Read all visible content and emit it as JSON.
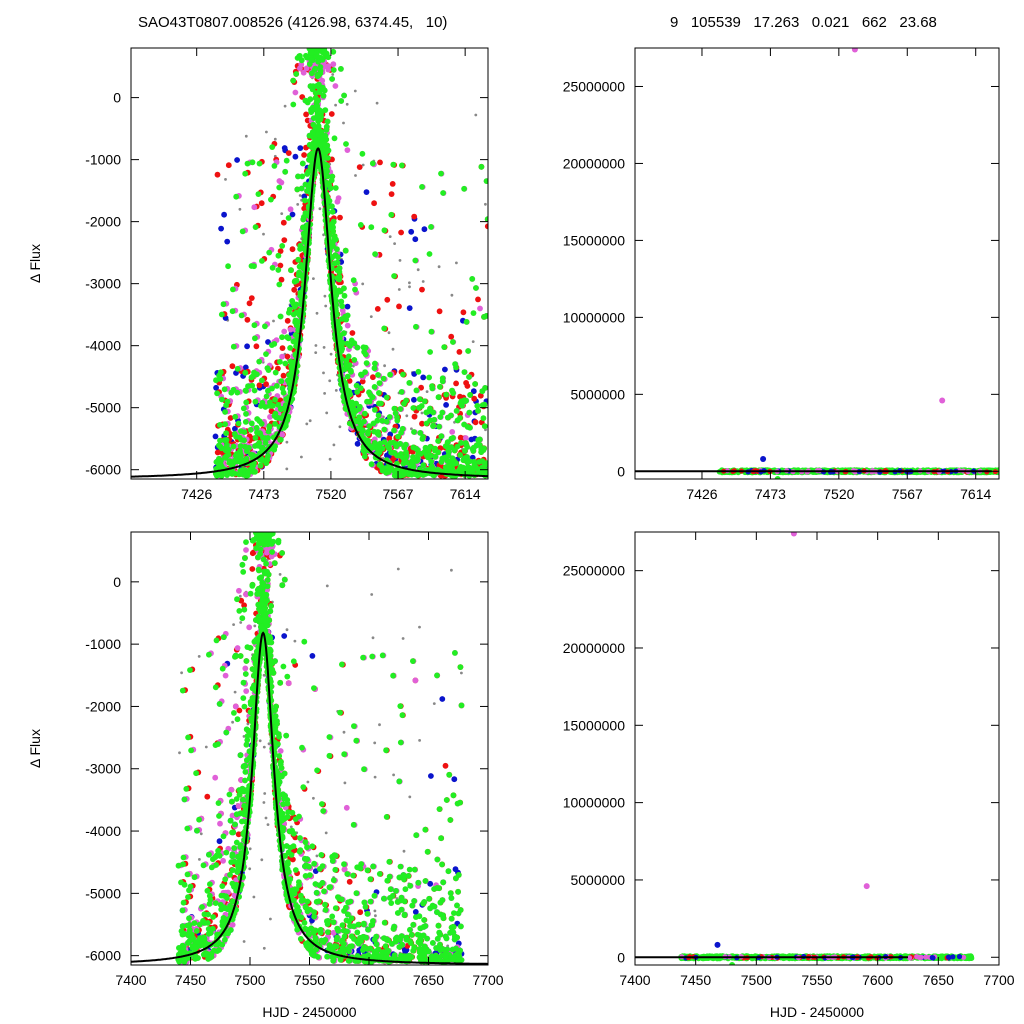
{
  "header": {
    "title_left": "SAO43T0807.008526 (4126.98, 6374.45,   10)",
    "title_right": "9   105539   17.263   0.021   662   23.68"
  },
  "colors": {
    "green": "#22ee22",
    "red": "#ee1111",
    "blue": "#0a14cc",
    "magenta": "#e060d8",
    "gray": "#888888",
    "fit": "#000000"
  },
  "chart_data": [
    {
      "type": "scatter",
      "title": "",
      "xlabel": "",
      "ylabel": "Δ Flux",
      "xlim": [
        7380,
        7630
      ],
      "ylim": [
        -6150,
        800
      ],
      "xticks": [
        7426,
        7473,
        7520,
        7567,
        7614
      ],
      "yticks": [
        0,
        -1000,
        -2000,
        -3000,
        -4000,
        -5000,
        -6000
      ],
      "grid": false,
      "fit_curve": {
        "shape": "lorentzian-like",
        "x_peak": 7511,
        "y_peak": -820,
        "baseline": -6150,
        "width_days": 14
      },
      "series": [
        {
          "color": "green",
          "x_range": [
            7438,
            7630
          ],
          "y_range": [
            -6100,
            800
          ],
          "count": "dense"
        },
        {
          "color": "magenta",
          "x_range": [
            7440,
            7630
          ],
          "y_range": [
            -6100,
            600
          ]
        },
        {
          "color": "red",
          "x_range": [
            7440,
            7630
          ],
          "y_range": [
            -6100,
            600
          ]
        },
        {
          "color": "blue",
          "x_range": [
            7438,
            7630
          ],
          "y_range": [
            -6000,
            -800
          ]
        },
        {
          "color": "gray",
          "x_range": [
            7440,
            7630
          ],
          "y_range": [
            -6000,
            400
          ]
        }
      ]
    },
    {
      "type": "scatter",
      "title": "",
      "xlabel": "",
      "ylabel": "",
      "xlim": [
        7380,
        7630
      ],
      "ylim": [
        -500000,
        27500000
      ],
      "xticks": [
        7426,
        7473,
        7520,
        7567,
        7614
      ],
      "yticks": [
        0,
        5000000,
        10000000,
        15000000,
        20000000,
        25000000
      ],
      "grid": false,
      "fit_curve": {
        "shape": "flat",
        "y": 0
      },
      "outliers": [
        {
          "x": 7468,
          "y": 800000,
          "color": "blue"
        },
        {
          "x": 7531,
          "y": 27400000,
          "color": "magenta"
        },
        {
          "x": 7591,
          "y": 4600000,
          "color": "magenta"
        },
        {
          "x": 7478,
          "y": -500000,
          "color": "green"
        }
      ],
      "series": [
        {
          "color": "green",
          "x_range": [
            7438,
            7630
          ],
          "y": 0
        }
      ]
    },
    {
      "type": "scatter",
      "title": "",
      "xlabel": "HJD - 2450000",
      "ylabel": "Δ Flux",
      "xlim": [
        7400,
        7700
      ],
      "ylim": [
        -6150,
        800
      ],
      "xticks": [
        7400,
        7450,
        7500,
        7550,
        7600,
        7650,
        7700
      ],
      "yticks": [
        0,
        -1000,
        -2000,
        -3000,
        -4000,
        -5000,
        -6000
      ],
      "grid": false,
      "fit_curve": {
        "shape": "lorentzian-like",
        "x_peak": 7511,
        "y_peak": -820,
        "baseline": -6150,
        "width_days": 14
      },
      "series": [
        {
          "color": "green",
          "x_range": [
            7438,
            7678
          ],
          "y_range": [
            -6100,
            800
          ],
          "count": "dense"
        },
        {
          "color": "magenta",
          "x_range": [
            7440,
            7678
          ],
          "y_range": [
            -6100,
            600
          ]
        },
        {
          "color": "red",
          "x_range": [
            7440,
            7678
          ],
          "y_range": [
            -6100,
            600
          ]
        },
        {
          "color": "blue",
          "x_range": [
            7438,
            7678
          ],
          "y_range": [
            -6000,
            -800
          ]
        },
        {
          "color": "gray",
          "x_range": [
            7440,
            7678
          ],
          "y_range": [
            -6000,
            400
          ]
        }
      ]
    },
    {
      "type": "scatter",
      "title": "",
      "xlabel": "HJD - 2450000",
      "ylabel": "",
      "xlim": [
        7400,
        7700
      ],
      "ylim": [
        -500000,
        27500000
      ],
      "xticks": [
        7400,
        7450,
        7500,
        7550,
        7600,
        7650,
        7700
      ],
      "yticks": [
        0,
        5000000,
        10000000,
        15000000,
        20000000,
        25000000
      ],
      "grid": false,
      "fit_curve": {
        "shape": "flat",
        "y": 0
      },
      "outliers": [
        {
          "x": 7468,
          "y": 800000,
          "color": "blue"
        },
        {
          "x": 7531,
          "y": 27400000,
          "color": "magenta"
        },
        {
          "x": 7591,
          "y": 4600000,
          "color": "magenta"
        },
        {
          "x": 7480,
          "y": -500000,
          "color": "green"
        }
      ],
      "series": [
        {
          "color": "green",
          "x_range": [
            7438,
            7678
          ],
          "y": 0
        }
      ]
    }
  ]
}
